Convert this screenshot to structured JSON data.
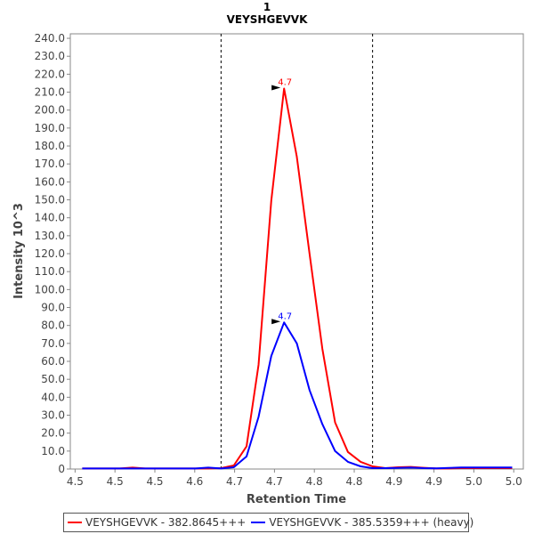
{
  "chart_data": {
    "type": "line",
    "title": "1",
    "subtitle": "VEYSHGEVVK",
    "xlabel": "Retention Time",
    "ylabel": "Intensity 10^3",
    "xlim": [
      4.444,
      5.012
    ],
    "ylim": [
      0,
      242.5
    ],
    "x_ticks": [
      4.45,
      4.5,
      4.55,
      4.6,
      4.65,
      4.7,
      4.75,
      4.8,
      4.85,
      4.9,
      4.95,
      5.0
    ],
    "x_tick_labels": [
      "4.5",
      "4.5",
      "4.5",
      "4.6",
      "4.7",
      "4.7",
      "4.8",
      "4.8",
      "4.9",
      "4.9",
      "5.0",
      "5.0"
    ],
    "y_ticks": [
      0,
      10,
      20,
      30,
      40,
      50,
      60,
      70,
      80,
      90,
      100,
      110,
      120,
      130,
      140,
      150,
      160,
      170,
      180,
      190,
      200,
      210,
      220,
      230,
      240
    ],
    "y_tick_labels": [
      "0",
      "10.0",
      "20.0",
      "30.0",
      "40.0",
      "50.0",
      "60.0",
      "70.0",
      "80.0",
      "90.0",
      "100.0",
      "110.0",
      "120.0",
      "130.0",
      "140.0",
      "150.0",
      "160.0",
      "170.0",
      "180.0",
      "190.0",
      "200.0",
      "210.0",
      "220.0",
      "230.0",
      "240.0"
    ],
    "grid": false,
    "integration_bounds": [
      4.633,
      4.823
    ],
    "x": [
      4.459,
      4.474,
      4.49,
      4.506,
      4.522,
      4.538,
      4.554,
      4.57,
      4.585,
      4.601,
      4.617,
      4.633,
      4.649,
      4.665,
      4.68,
      4.696,
      4.712,
      4.728,
      4.744,
      4.76,
      4.776,
      4.792,
      4.808,
      4.823,
      4.839,
      4.855,
      4.871,
      4.887,
      4.903,
      4.919,
      4.934,
      4.95,
      4.966,
      4.982,
      4.998
    ],
    "series": [
      {
        "name": "VEYSHGEVVK - 382.8645+++",
        "color": "#ff0000",
        "values": [
          0.3,
          0.3,
          0.3,
          0.3,
          0.8,
          0.3,
          0.3,
          0.3,
          0.3,
          0.3,
          0.3,
          0.5,
          2,
          12.6,
          58,
          149.5,
          212,
          174,
          120,
          67,
          26,
          9.5,
          4,
          1.5,
          0.5,
          1,
          1.2,
          0.7,
          0.3,
          0.3,
          0.5,
          0.5,
          0.5,
          0.5,
          0.5
        ],
        "peak_label": "4.7",
        "peak_index": 16
      },
      {
        "name": "VEYSHGEVVK - 385.5359+++ (heavy)",
        "color": "#0000ff",
        "values": [
          0.3,
          0.3,
          0.3,
          0.3,
          0.3,
          0.3,
          0.3,
          0.3,
          0.3,
          0.3,
          0.8,
          0.3,
          1,
          7,
          29,
          63,
          81.7,
          70,
          44,
          25,
          10,
          4,
          1.5,
          0.5,
          0.5,
          0.6,
          0.8,
          0.5,
          0.4,
          0.6,
          0.9,
          0.9,
          0.9,
          0.9,
          0.9
        ],
        "peak_label": "4.7",
        "peak_index": 16
      }
    ],
    "legend_position": "bottom"
  }
}
